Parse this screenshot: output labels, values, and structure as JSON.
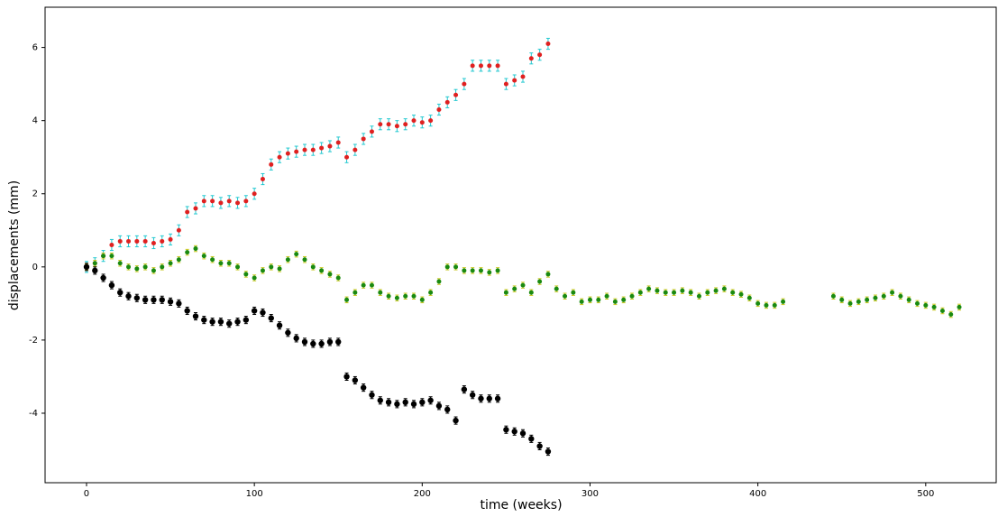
{
  "chart_data": {
    "type": "errorbar_scatter",
    "x_label": "time (weeks)",
    "y_label": "displacements (mm)",
    "xlim": [
      -24.7,
      542
    ],
    "ylim": [
      -5.9,
      7.1
    ],
    "xticks": [
      0,
      100,
      200,
      300,
      400,
      500
    ],
    "yticks": [
      -4,
      -2,
      0,
      2,
      4,
      6
    ],
    "series": [
      {
        "color": "#e02020",
        "error_color": "#22c8d0",
        "error": 0.15,
        "x": [
          0,
          5,
          10,
          15,
          20,
          25,
          30,
          35,
          40,
          45,
          50,
          55,
          60,
          65,
          70,
          75,
          80,
          85,
          90,
          95,
          100,
          105,
          110,
          115,
          120,
          125,
          130,
          135,
          140,
          145,
          150,
          155,
          160,
          165,
          170,
          175,
          180,
          185,
          190,
          195,
          200,
          205,
          210,
          215,
          220,
          225,
          230,
          235,
          240,
          245,
          250,
          255,
          260,
          265,
          270,
          275
        ],
        "values": [
          0,
          0.1,
          0.3,
          0.6,
          0.7,
          0.7,
          0.7,
          0.7,
          0.65,
          0.7,
          0.75,
          1.0,
          1.5,
          1.6,
          1.8,
          1.8,
          1.75,
          1.8,
          1.75,
          1.8,
          2.0,
          2.4,
          2.8,
          3.0,
          3.1,
          3.15,
          3.2,
          3.2,
          3.25,
          3.3,
          3.4,
          3.0,
          3.2,
          3.5,
          3.7,
          3.9,
          3.9,
          3.85,
          3.9,
          4.0,
          3.95,
          4.0,
          4.3,
          4.5,
          4.7,
          5.0,
          5.5,
          5.5,
          5.5,
          5.5,
          5.0,
          5.1,
          5.2,
          5.7,
          5.8,
          6.1
        ]
      },
      {
        "color": "#1a8a10",
        "error_color": "#c8c820",
        "error": 0.08,
        "x": [
          0,
          5,
          10,
          15,
          20,
          25,
          30,
          35,
          40,
          45,
          50,
          55,
          60,
          65,
          70,
          75,
          80,
          85,
          90,
          95,
          100,
          105,
          110,
          115,
          120,
          125,
          130,
          135,
          140,
          145,
          150,
          155,
          160,
          165,
          170,
          175,
          180,
          185,
          190,
          195,
          200,
          205,
          210,
          215,
          220,
          225,
          230,
          235,
          240,
          245,
          250,
          255,
          260,
          265,
          270,
          275,
          280,
          285,
          290,
          295,
          300,
          305,
          310,
          315,
          320,
          325,
          330,
          335,
          340,
          345,
          350,
          355,
          360,
          365,
          370,
          375,
          380,
          385,
          390,
          395,
          400,
          405,
          410,
          415,
          445,
          450,
          455,
          460,
          465,
          470,
          475,
          480,
          485,
          490,
          495,
          500,
          505,
          510,
          515,
          520
        ],
        "values": [
          0,
          0.1,
          0.3,
          0.3,
          0.1,
          0.0,
          -0.05,
          0,
          -0.1,
          0,
          0.1,
          0.2,
          0.4,
          0.5,
          0.3,
          0.2,
          0.1,
          0.1,
          0.0,
          -0.2,
          -0.3,
          -0.1,
          0.0,
          -0.05,
          0.2,
          0.35,
          0.2,
          0.0,
          -0.1,
          -0.2,
          -0.3,
          -0.9,
          -0.7,
          -0.5,
          -0.5,
          -0.7,
          -0.8,
          -0.85,
          -0.8,
          -0.8,
          -0.9,
          -0.7,
          -0.4,
          0.0,
          0.0,
          -0.1,
          -0.1,
          -0.1,
          -0.15,
          -0.1,
          -0.7,
          -0.6,
          -0.5,
          -0.7,
          -0.4,
          -0.2,
          -0.6,
          -0.8,
          -0.7,
          -0.95,
          -0.9,
          -0.9,
          -0.8,
          -0.95,
          -0.9,
          -0.8,
          -0.7,
          -0.6,
          -0.65,
          -0.7,
          -0.7,
          -0.65,
          -0.7,
          -0.8,
          -0.7,
          -0.65,
          -0.6,
          -0.7,
          -0.75,
          -0.85,
          -1.0,
          -1.05,
          -1.05,
          -0.95,
          -0.8,
          -0.9,
          -1.0,
          -0.95,
          -0.9,
          -0.85,
          -0.8,
          -0.7,
          -0.8,
          -0.9,
          -1.0,
          -1.05,
          -1.1,
          -1.2,
          -1.3,
          -1.1
        ]
      },
      {
        "color": "#000000",
        "error_color": "#000000",
        "error": 0.1,
        "x": [
          0,
          5,
          10,
          15,
          20,
          25,
          30,
          35,
          40,
          45,
          50,
          55,
          60,
          65,
          70,
          75,
          80,
          85,
          90,
          95,
          100,
          105,
          110,
          115,
          120,
          125,
          130,
          135,
          140,
          145,
          150,
          155,
          160,
          165,
          170,
          175,
          180,
          185,
          190,
          195,
          200,
          205,
          210,
          215,
          220,
          225,
          230,
          235,
          240,
          245,
          250,
          255,
          260,
          265,
          270,
          275
        ],
        "values": [
          0,
          -0.1,
          -0.3,
          -0.5,
          -0.7,
          -0.8,
          -0.85,
          -0.9,
          -0.9,
          -0.9,
          -0.95,
          -1.0,
          -1.2,
          -1.35,
          -1.45,
          -1.5,
          -1.5,
          -1.55,
          -1.5,
          -1.45,
          -1.2,
          -1.25,
          -1.4,
          -1.6,
          -1.8,
          -1.95,
          -2.05,
          -2.1,
          -2.1,
          -2.05,
          -2.05,
          -3.0,
          -3.1,
          -3.3,
          -3.5,
          -3.65,
          -3.7,
          -3.75,
          -3.7,
          -3.75,
          -3.7,
          -3.65,
          -3.8,
          -3.9,
          -4.2,
          -3.35,
          -3.5,
          -3.6,
          -3.6,
          -3.6,
          -4.45,
          -4.5,
          -4.55,
          -4.7,
          -4.9,
          -5.05
        ]
      }
    ]
  }
}
